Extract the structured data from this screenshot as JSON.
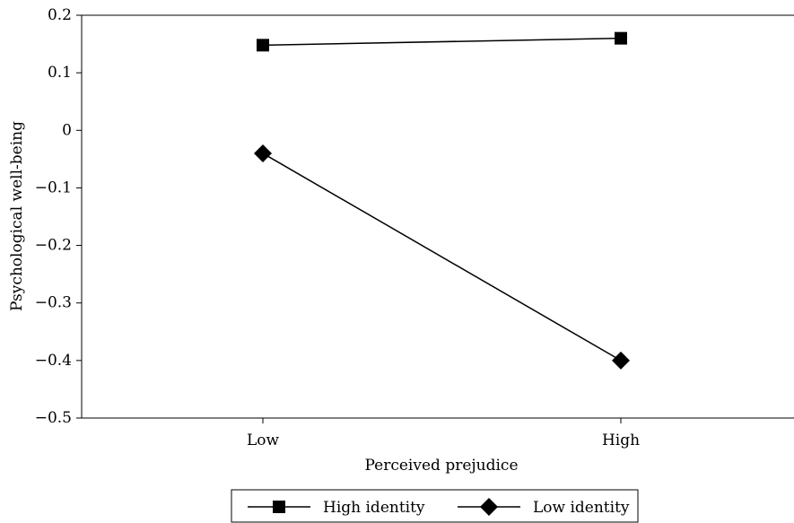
{
  "chart_data": {
    "type": "line",
    "title": "",
    "xlabel": "Perceived prejudice",
    "ylabel": "Psychological well-being",
    "categories": [
      "Low",
      "High"
    ],
    "ylim": [
      -0.5,
      0.2
    ],
    "yticks": [
      0.2,
      0.1,
      0,
      -0.1,
      -0.2,
      -0.3,
      -0.4,
      -0.5
    ],
    "ytick_labels": [
      "0.2",
      "0.1",
      "0",
      "−0.1",
      "−0.2",
      "−0.3",
      "−0.4",
      "−0.5"
    ],
    "grid": false,
    "legend_position": "bottom",
    "series": [
      {
        "name": "High identity",
        "marker": "square",
        "color": "#000000",
        "values": [
          0.148,
          0.16
        ]
      },
      {
        "name": "Low identity",
        "marker": "diamond",
        "color": "#000000",
        "values": [
          -0.04,
          -0.4
        ]
      }
    ]
  }
}
